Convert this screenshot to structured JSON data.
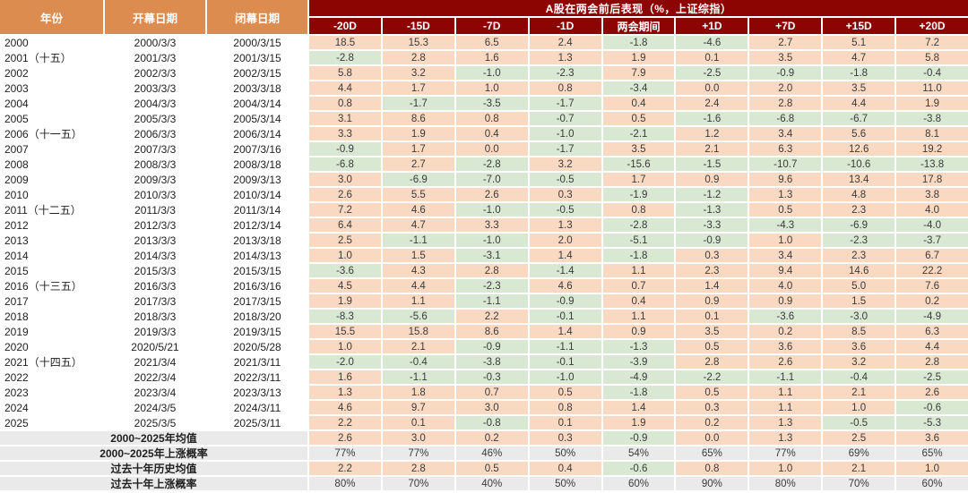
{
  "title": "A股在两会前后表现（%，上证综指）",
  "colors": {
    "header_orange": "#DD8C50",
    "header_red": "#8C0503",
    "positive_cell": "#FAD9C3",
    "negative_cell": "#D9E8D3",
    "neutral_cell": "#EAEAEA",
    "header_text": "#FFFFFF",
    "body_text": "#333333"
  },
  "chart_data": {
    "type": "table",
    "title": "A股在两会前后表现（%，上证综指）",
    "columns": [
      "年份",
      "开幕日期",
      "闭幕日期",
      "-20D",
      "-15D",
      "-7D",
      "-1D",
      "两会期间",
      "+1D",
      "+7D",
      "+15D",
      "+20D"
    ],
    "cell_color_rule": "value >= 0 light-orange, value < 0 light-green, probability rows light-gray",
    "rows": [
      [
        "2000",
        "2000/3/3",
        "2000/3/15",
        "18.5",
        "15.3",
        "6.5",
        "2.4",
        "-1.8",
        "-4.6",
        "2.7",
        "5.1",
        "7.2"
      ],
      [
        "2001（十五）",
        "2001/3/3",
        "2001/3/15",
        "-2.8",
        "2.8",
        "1.6",
        "1.3",
        "1.9",
        "0.1",
        "3.5",
        "4.7",
        "5.8"
      ],
      [
        "2002",
        "2002/3/3",
        "2002/3/15",
        "5.8",
        "3.2",
        "-1.0",
        "-2.3",
        "7.9",
        "-2.5",
        "-0.9",
        "-1.8",
        "-0.4"
      ],
      [
        "2003",
        "2003/3/3",
        "2003/3/18",
        "4.4",
        "1.7",
        "1.0",
        "0.8",
        "-3.4",
        "0.0",
        "2.0",
        "3.5",
        "11.0"
      ],
      [
        "2004",
        "2004/3/3",
        "2004/3/14",
        "0.8",
        "-1.7",
        "-3.5",
        "-1.7",
        "0.4",
        "2.4",
        "2.8",
        "4.4",
        "1.9"
      ],
      [
        "2005",
        "2005/3/3",
        "2005/3/14",
        "3.1",
        "8.6",
        "0.8",
        "-0.7",
        "0.5",
        "-1.6",
        "-6.8",
        "-6.7",
        "-3.8"
      ],
      [
        "2006（十一五）",
        "2006/3/3",
        "2006/3/14",
        "3.3",
        "1.9",
        "0.4",
        "-1.0",
        "-2.1",
        "1.2",
        "3.4",
        "5.6",
        "8.1"
      ],
      [
        "2007",
        "2007/3/3",
        "2007/3/16",
        "-0.9",
        "1.7",
        "0.0",
        "-1.7",
        "3.5",
        "2.1",
        "6.3",
        "12.6",
        "19.2"
      ],
      [
        "2008",
        "2008/3/3",
        "2008/3/18",
        "-6.8",
        "2.7",
        "-2.8",
        "3.2",
        "-15.6",
        "-1.5",
        "-10.7",
        "-10.6",
        "-13.8"
      ],
      [
        "2009",
        "2009/3/3",
        "2009/3/13",
        "3.0",
        "-6.9",
        "-7.0",
        "-0.5",
        "1.7",
        "0.9",
        "9.6",
        "13.4",
        "17.8"
      ],
      [
        "2010",
        "2010/3/3",
        "2010/3/14",
        "2.6",
        "5.5",
        "2.6",
        "0.3",
        "-1.9",
        "-1.2",
        "1.3",
        "4.8",
        "3.8"
      ],
      [
        "2011（十二五）",
        "2011/3/3",
        "2011/3/14",
        "7.2",
        "4.6",
        "-1.0",
        "-0.5",
        "0.8",
        "-1.3",
        "0.5",
        "2.3",
        "4.0"
      ],
      [
        "2012",
        "2012/3/3",
        "2012/3/14",
        "6.4",
        "4.7",
        "3.3",
        "1.3",
        "-2.8",
        "-3.3",
        "-4.3",
        "-6.9",
        "-4.0"
      ],
      [
        "2013",
        "2013/3/3",
        "2013/3/18",
        "2.5",
        "-1.1",
        "-1.0",
        "2.0",
        "-5.1",
        "-0.9",
        "1.0",
        "-2.3",
        "-3.7"
      ],
      [
        "2014",
        "2014/3/3",
        "2014/3/13",
        "1.0",
        "1.5",
        "-3.1",
        "1.4",
        "-1.8",
        "0.3",
        "3.4",
        "2.3",
        "6.7"
      ],
      [
        "2015",
        "2015/3/3",
        "2015/3/15",
        "-3.6",
        "4.3",
        "2.8",
        "-1.4",
        "1.1",
        "2.3",
        "9.4",
        "14.6",
        "22.2"
      ],
      [
        "2016（十三五）",
        "2016/3/3",
        "2016/3/16",
        "4.5",
        "4.4",
        "-2.3",
        "4.6",
        "0.7",
        "1.4",
        "4.0",
        "5.0",
        "7.6"
      ],
      [
        "2017",
        "2017/3/3",
        "2017/3/15",
        "1.9",
        "1.1",
        "-1.1",
        "-0.9",
        "0.4",
        "0.9",
        "0.9",
        "1.5",
        "0.2"
      ],
      [
        "2018",
        "2018/3/3",
        "2018/3/20",
        "-8.3",
        "-5.6",
        "2.2",
        "-0.1",
        "1.1",
        "0.1",
        "-3.6",
        "-3.0",
        "-4.9"
      ],
      [
        "2019",
        "2019/3/3",
        "2019/3/15",
        "15.5",
        "15.8",
        "8.6",
        "1.4",
        "0.9",
        "3.5",
        "0.2",
        "8.5",
        "6.3"
      ],
      [
        "2020",
        "2020/5/21",
        "2020/5/28",
        "1.0",
        "2.1",
        "-0.9",
        "-1.1",
        "-1.3",
        "0.5",
        "3.6",
        "3.6",
        "4.4"
      ],
      [
        "2021（十四五）",
        "2021/3/4",
        "2021/3/11",
        "-2.0",
        "-0.4",
        "-3.8",
        "-0.1",
        "-3.9",
        "2.8",
        "2.6",
        "3.2",
        "2.8"
      ],
      [
        "2022",
        "2022/3/4",
        "2022/3/11",
        "1.6",
        "-1.1",
        "-0.3",
        "-1.0",
        "-4.9",
        "-2.2",
        "-1.1",
        "-0.4",
        "-2.5"
      ],
      [
        "2023",
        "2023/3/4",
        "2023/3/13",
        "1.3",
        "1.8",
        "0.7",
        "0.5",
        "-1.8",
        "0.5",
        "1.1",
        "2.1",
        "2.6"
      ],
      [
        "2024",
        "2024/3/5",
        "2024/3/11",
        "4.6",
        "9.7",
        "3.0",
        "0.8",
        "1.4",
        "0.3",
        "1.1",
        "1.0",
        "-0.6"
      ],
      [
        "2025",
        "2025/3/5",
        "2025/3/11",
        "2.2",
        "0.1",
        "-0.8",
        "0.1",
        "1.9",
        "0.2",
        "1.3",
        "-0.5",
        "-5.3"
      ]
    ],
    "summary_rows": [
      {
        "label": "2000~2025年均值",
        "kind": "mean",
        "values": [
          "2.6",
          "3.0",
          "0.2",
          "0.3",
          "-0.9",
          "0.0",
          "1.3",
          "2.5",
          "3.6"
        ]
      },
      {
        "label": "2000~2025年上涨概率",
        "kind": "prob",
        "values": [
          "77%",
          "77%",
          "46%",
          "50%",
          "54%",
          "65%",
          "77%",
          "69%",
          "65%"
        ]
      },
      {
        "label": "过去十年历史均值",
        "kind": "mean",
        "values": [
          "2.2",
          "2.8",
          "0.5",
          "0.4",
          "-0.6",
          "0.8",
          "1.0",
          "2.1",
          "1.0"
        ]
      },
      {
        "label": "过去十年上涨概率",
        "kind": "prob",
        "values": [
          "80%",
          "70%",
          "40%",
          "50%",
          "60%",
          "90%",
          "80%",
          "70%",
          "60%"
        ]
      }
    ]
  }
}
